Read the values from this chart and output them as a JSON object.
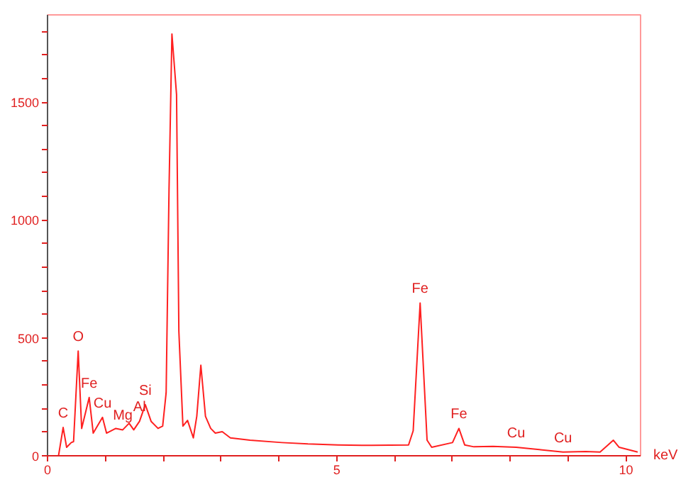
{
  "chart_data": {
    "type": "line",
    "xlabel": "keV",
    "x": [
      0.19,
      0.27,
      0.33,
      0.41,
      0.45,
      0.53,
      0.59,
      0.72,
      0.79,
      0.95,
      1.02,
      1.18,
      1.3,
      1.41,
      1.49,
      1.59,
      1.69,
      1.79,
      1.91,
      1.99,
      2.05,
      2.1,
      2.15,
      2.23,
      2.27,
      2.34,
      2.42,
      2.52,
      2.58,
      2.65,
      2.73,
      2.82,
      2.9,
      3.02,
      3.16,
      3.5,
      4.05,
      4.5,
      5.02,
      5.6,
      6.24,
      6.32,
      6.44,
      6.56,
      6.64,
      7.0,
      7.11,
      7.21,
      7.37,
      7.7,
      8.1,
      8.5,
      8.91,
      9.3,
      9.55,
      9.78,
      9.88,
      10.2
    ],
    "series": [
      {
        "color": "#ff2020",
        "values": [
          0,
          120,
          36,
          56,
          60,
          444,
          116,
          247,
          96,
          163,
          96,
          116,
          110,
          138,
          110,
          146,
          217,
          146,
          116,
          126,
          267,
          1130,
          1789,
          1532,
          528,
          126,
          150,
          76,
          168,
          384,
          167,
          116,
          96,
          102,
          76,
          66,
          56,
          50,
          46,
          44,
          46,
          106,
          648,
          66,
          36,
          56,
          116,
          46,
          38,
          40,
          36,
          26,
          16,
          18,
          16,
          66,
          36,
          16
        ]
      }
    ],
    "xlim": [
      0,
      10.25
    ],
    "ylim": [
      0,
      1870
    ],
    "xticks": [
      0,
      {
        "value": 1,
        "label": null
      },
      {
        "value": 2,
        "label": null
      },
      {
        "value": 3,
        "label": null
      },
      {
        "value": 4,
        "label": null
      },
      5,
      {
        "value": 6,
        "label": null
      },
      {
        "value": 7,
        "label": null
      },
      {
        "value": 8,
        "label": null
      },
      {
        "value": 9,
        "label": null
      },
      10
    ],
    "yticks": [
      0,
      {
        "value": 100,
        "label": null
      },
      {
        "value": 200,
        "label": null
      },
      {
        "value": 300,
        "label": null
      },
      {
        "value": 400,
        "label": null
      },
      500,
      {
        "value": 600,
        "label": null
      },
      {
        "value": 700,
        "label": null
      },
      {
        "value": 800,
        "label": null
      },
      {
        "value": 900,
        "label": null
      },
      1000,
      {
        "value": 1100,
        "label": null
      },
      {
        "value": 1200,
        "label": null
      },
      {
        "value": 1300,
        "label": null
      },
      {
        "value": 1400,
        "label": null
      },
      1500,
      {
        "value": 1600,
        "label": null
      },
      {
        "value": 1700,
        "label": null
      },
      {
        "value": 1800,
        "label": null
      }
    ],
    "annotations": [
      {
        "text": "C",
        "x": 0.27,
        "y": 120
      },
      {
        "text": "O",
        "x": 0.53,
        "y": 444
      },
      {
        "text": "Fe",
        "x": 0.72,
        "y": 247
      },
      {
        "text": "Cu",
        "x": 0.95,
        "y": 163
      },
      {
        "text": "Mg",
        "x": 1.3,
        "y": 110
      },
      {
        "text": "Al",
        "x": 1.59,
        "y": 146
      },
      {
        "text": "Si",
        "x": 1.69,
        "y": 217
      },
      {
        "text": "Fe",
        "x": 6.44,
        "y": 648
      },
      {
        "text": "Fe",
        "x": 7.11,
        "y": 116
      },
      {
        "text": "Cu",
        "x": 8.1,
        "y": 36
      },
      {
        "text": "Cu",
        "x": 8.91,
        "y": 16
      }
    ],
    "grid": false
  }
}
